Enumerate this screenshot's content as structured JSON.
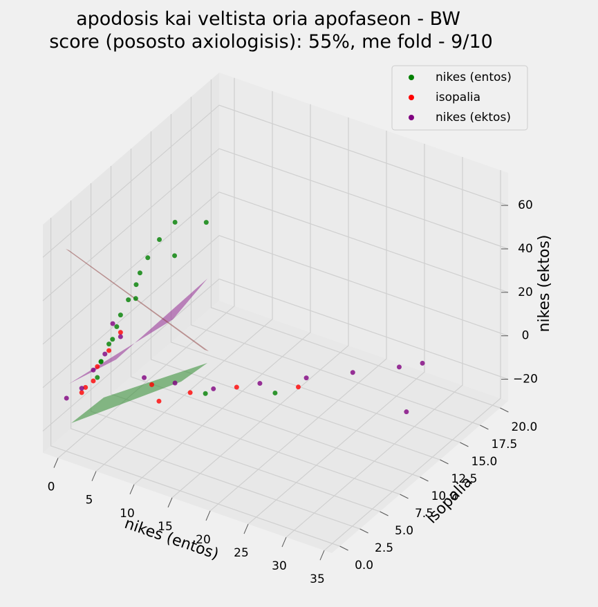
{
  "chart_data": {
    "type": "scatter3d",
    "title": "apodosis kai veltista oria apofaseon - BW",
    "subtitle": "score (pososto axiologisis): 55%, me fold - 9/10",
    "x_label": "nikes (entos)",
    "y_label": "isopalia",
    "z_label": "nikes (ektos)",
    "xlim": [
      -2,
      36
    ],
    "ylim": [
      -1,
      21
    ],
    "zlim": [
      -30,
      75
    ],
    "xticks": [
      0,
      5,
      10,
      15,
      20,
      25,
      30,
      35
    ],
    "yticks": [
      {
        "value": 0,
        "label": "0.0"
      },
      {
        "value": 2.5,
        "label": "2.5"
      },
      {
        "value": 5,
        "label": "5.0"
      },
      {
        "value": 7.5,
        "label": "7.5"
      },
      {
        "value": 10,
        "label": "10.0"
      },
      {
        "value": 12.5,
        "label": "12.5"
      },
      {
        "value": 15,
        "label": "15.0"
      },
      {
        "value": 17.5,
        "label": "17.5"
      },
      {
        "value": 20,
        "label": "20.0"
      }
    ],
    "zticks": [
      {
        "value": -20,
        "label": "−20"
      },
      0,
      20,
      40,
      60
    ],
    "grid": true,
    "legend": "upper right",
    "series": [
      {
        "name": "nikes (entos)",
        "color": "#008000",
        "x": [
          2,
          2.5,
          3,
          3.5,
          4,
          4.5,
          5,
          5.5,
          6,
          7,
          8,
          10,
          9,
          6,
          4,
          3,
          12,
          18
        ],
        "y": [
          2,
          2,
          2.5,
          3,
          3,
          3.5,
          4,
          4,
          4.5,
          5,
          6,
          8,
          5,
          3,
          2,
          1.5,
          6,
          9
        ],
        "z": [
          0,
          8,
          15,
          22,
          28,
          34,
          40,
          46,
          52,
          60,
          66,
          62,
          55,
          38,
          20,
          10,
          -8,
          -10
        ]
      },
      {
        "name": "isopalia",
        "color": "#ff0000",
        "x": [
          1,
          2,
          3,
          2,
          6,
          10,
          14,
          20,
          4,
          1.5,
          8
        ],
        "y": [
          1,
          2,
          2.5,
          1.5,
          5,
          6,
          8,
          10,
          3,
          1,
          4
        ],
        "z": [
          -5,
          5,
          12,
          0,
          -8,
          -10,
          -9,
          -8,
          20,
          -2,
          -10
        ]
      },
      {
        "name": "nikes (ektos)",
        "color": "#800080",
        "x": [
          1,
          2,
          3,
          4,
          3.5,
          5,
          8,
          12,
          16,
          20,
          24,
          28,
          30,
          -1,
          30
        ],
        "y": [
          1,
          1.5,
          2,
          3,
          2.5,
          5,
          6,
          7,
          9,
          11,
          13,
          15,
          16,
          1,
          14
        ],
        "z": [
          -3,
          5,
          12,
          18,
          25,
          -6,
          -8,
          -9,
          -8,
          -7,
          -6,
          -5,
          -4,
          -10,
          -20
        ]
      }
    ]
  }
}
